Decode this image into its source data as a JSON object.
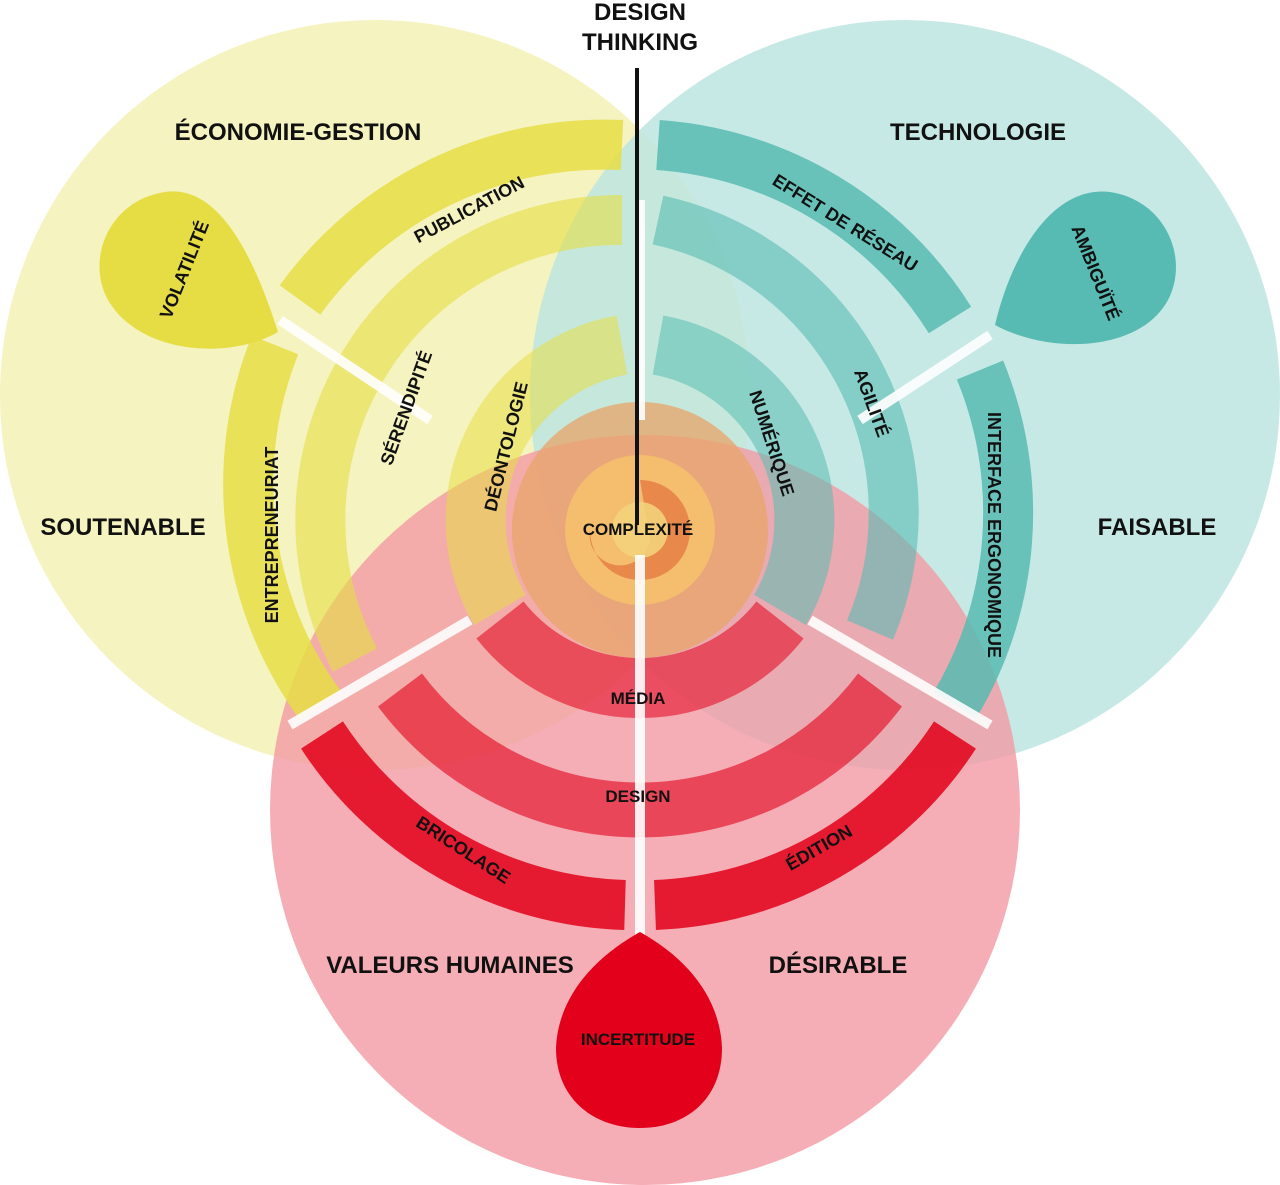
{
  "title": {
    "line1": "DESIGN",
    "line2": "THINKING"
  },
  "circles": {
    "economie": {
      "label": "ÉCONOMIE-GESTION",
      "side_label": "SOUTENABLE",
      "color": "#f3f1b4"
    },
    "technologie": {
      "label": "TECHNOLOGIE",
      "side_label": "FAISABLE",
      "color": "#bde5e1"
    },
    "valeurs": {
      "label": "VALEURS HUMAINES",
      "side_label": "DÉSIRABLE",
      "color": "#f29aa4"
    }
  },
  "drops": {
    "volatilite": {
      "label": "VOLATILITÉ",
      "color": "#e6dd45"
    },
    "ambiguite": {
      "label": "AMBIGUÏTÉ",
      "color": "#58bbb3"
    },
    "incertitude": {
      "label": "INCERTITUDE",
      "color": "#e2001a"
    }
  },
  "arcs": {
    "outer": {
      "publication": "PUBLICATION",
      "effet_reseau": "EFFET DE RÉSEAU",
      "entrepreneuriat": "ENTREPRENEURIAT",
      "interface": "INTERFACE ERGONOMIQUE",
      "bricolage": "BRICOLAGE",
      "edition": "ÉDITION"
    },
    "middle": {
      "serendipite": "SÉRENDIPITÉ",
      "agilite": "AGILITÉ",
      "design": "DESIGN"
    },
    "inner": {
      "deontologie": "DÉONTOLOGIE",
      "numerique": "NUMÉRIQUE",
      "media": "MÉDIA"
    }
  },
  "center": {
    "label": "COMPLEXITÉ"
  },
  "colors": {
    "yellow_band": "#e6dd45",
    "teal_band": "#58bbb3",
    "red_band": "#e2001a",
    "spiral": "#e8a46a"
  }
}
